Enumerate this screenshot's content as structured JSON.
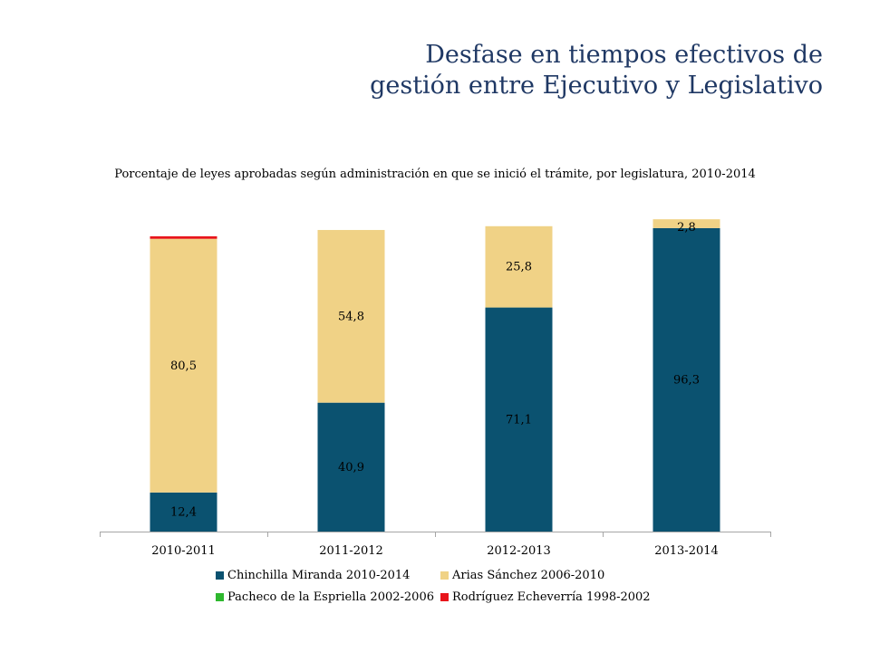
{
  "title": {
    "line1": "Desfase en tiempos efectivos de",
    "line2": "gestión entre Ejecutivo y Legislativo"
  },
  "chart_data": {
    "type": "bar",
    "stacked": true,
    "title": "Porcentaje de leyes aprobadas según administración en que se inició el trámite, por legislatura, 2010-2014",
    "categories": [
      "2010-2011",
      "2011-2012",
      "2012-2013",
      "2013-2014"
    ],
    "ylim": [
      0,
      100
    ],
    "grid": false,
    "legend_position": "bottom",
    "series": [
      {
        "name": "Chinchilla Miranda 2010-2014",
        "color": "#0b5270",
        "values": [
          12.4,
          40.9,
          71.1,
          96.3
        ],
        "labels": [
          "12,4",
          "40,9",
          "71,1",
          "96,3"
        ]
      },
      {
        "name": "Arias Sánchez 2006-2010",
        "color": "#f0d286",
        "values": [
          80.5,
          54.8,
          25.8,
          2.8
        ],
        "labels": [
          "80,5",
          "54,8",
          "25,8",
          "2,8"
        ]
      },
      {
        "name": "Pacheco de la Espriella 2002-2006",
        "color": "#2eb82e",
        "values": [
          0,
          0,
          0,
          0
        ],
        "labels": [
          "",
          "",
          "",
          ""
        ]
      },
      {
        "name": "Rodríguez Echeverría 1998-2002",
        "color": "#e8141b",
        "values": [
          0.8,
          0,
          0,
          0
        ],
        "labels": [
          "",
          "",
          "",
          ""
        ]
      }
    ]
  }
}
